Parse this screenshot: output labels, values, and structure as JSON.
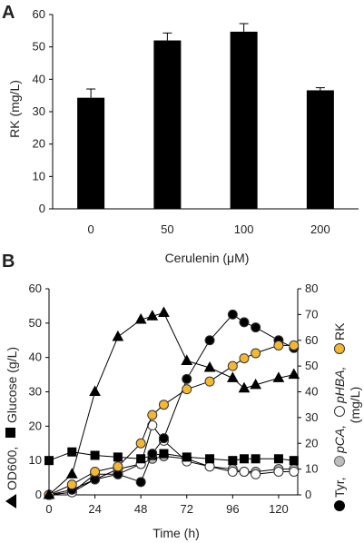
{
  "chart_data": [
    {
      "panel": "A",
      "type": "bar",
      "categories": [
        "0",
        "50",
        "100",
        "200"
      ],
      "values": [
        34.3,
        52.0,
        54.7,
        36.6
      ],
      "errors": [
        2.7,
        2.3,
        2.5,
        0.8
      ],
      "xlabel": "Cerulenin (μM)",
      "ylabel": "RK (mg/L)",
      "ylim": [
        0,
        60
      ],
      "yticks": [
        "0",
        "10",
        "20",
        "30",
        "40",
        "50",
        "60"
      ],
      "bar_color": "#000000",
      "grid": false
    },
    {
      "panel": "B",
      "type": "line",
      "xlabel": "Time (h)",
      "xlim": [
        0,
        130
      ],
      "xticks": [
        "0",
        "24",
        "48",
        "72",
        "96",
        "120"
      ],
      "left_axis": {
        "label_line1": "OD600, ",
        "label_line2": "Glucose (g/L)",
        "ylim": [
          0,
          60
        ],
        "yticks": [
          "0",
          "10",
          "20",
          "30",
          "40",
          "50",
          "60"
        ]
      },
      "right_axis": {
        "label_line1": "Tyr, ",
        "label_pca": "pCA, ",
        "label_phba": "pHBA, ",
        "label_rk": "RK",
        "label_line2": "(mg/L)",
        "ylim": [
          0,
          80
        ],
        "yticks": [
          "0",
          "10",
          "20",
          "30",
          "40",
          "50",
          "60",
          "70",
          "80"
        ]
      },
      "series": [
        {
          "key": "od600",
          "axis": "left",
          "marker": "triangle",
          "fill": "#000000",
          "x": [
            0,
            12,
            24,
            36,
            48,
            54,
            60,
            72,
            84,
            96,
            102,
            108,
            120,
            128
          ],
          "y": [
            0,
            6,
            30,
            46,
            51,
            52,
            53,
            39,
            37,
            34,
            31,
            32,
            34,
            35
          ]
        },
        {
          "key": "glucose",
          "axis": "left",
          "marker": "square",
          "fill": "#000000",
          "x": [
            0,
            12,
            24,
            36,
            48,
            54,
            60,
            72,
            84,
            96,
            102,
            108,
            120,
            128
          ],
          "y": [
            10,
            12.5,
            11.5,
            11,
            10.5,
            11.5,
            12,
            11,
            10.5,
            10,
            10.5,
            10.5,
            10.5,
            10
          ]
        },
        {
          "key": "tyr",
          "axis": "right",
          "marker": "circle",
          "fill": "#000000",
          "x": [
            0,
            12,
            24,
            36,
            48,
            54,
            60,
            72,
            84,
            96,
            102,
            108,
            120,
            128
          ],
          "y": [
            0,
            2,
            6,
            8,
            5,
            16,
            22,
            45,
            60,
            70,
            67,
            65,
            60,
            57
          ]
        },
        {
          "key": "pca",
          "axis": "right",
          "marker": "circle",
          "fill": "#bdbdbd",
          "x": [
            0,
            12,
            24,
            36,
            48,
            54,
            60,
            72,
            84,
            96,
            102,
            108,
            120,
            128
          ],
          "y": [
            0,
            1,
            8,
            8,
            12,
            14,
            15,
            14,
            11,
            10,
            9,
            9,
            10,
            10
          ]
        },
        {
          "key": "phba",
          "axis": "right",
          "marker": "circle",
          "fill": "#ffffff",
          "x": [
            0,
            12,
            24,
            36,
            48,
            54,
            60,
            72,
            84,
            96,
            102,
            108,
            120,
            128
          ],
          "y": [
            0,
            1,
            6,
            10,
            12,
            27,
            21,
            13,
            11,
            9,
            9,
            8,
            9,
            9
          ]
        },
        {
          "key": "rk",
          "axis": "right",
          "marker": "circle",
          "fill": "#f5b731",
          "x": [
            0,
            12,
            24,
            36,
            48,
            54,
            60,
            72,
            84,
            96,
            102,
            108,
            120,
            128
          ],
          "y": [
            0,
            4,
            9,
            11,
            20,
            31,
            35,
            41,
            44,
            50,
            53,
            55,
            58,
            58
          ]
        }
      ],
      "grid": false
    }
  ]
}
